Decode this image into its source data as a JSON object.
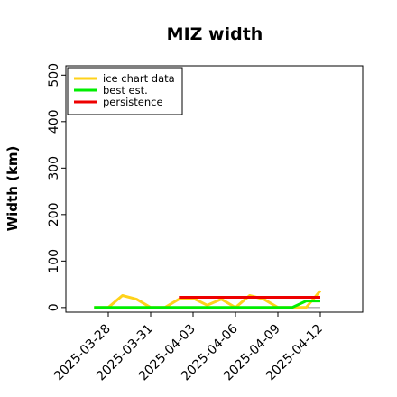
{
  "chart_data": {
    "type": "line",
    "title": "MIZ width",
    "xlabel": "",
    "ylabel": "Width (km)",
    "ylim": [
      -10,
      520
    ],
    "yticks": [
      0,
      100,
      200,
      300,
      400,
      500
    ],
    "xlim": [
      "2025-03-25",
      "2025-04-15"
    ],
    "xticks": [
      "2025-03-28",
      "2025-03-31",
      "2025-04-03",
      "2025-04-06",
      "2025-04-09",
      "2025-04-12"
    ],
    "grid": false,
    "legend_position": "top-left",
    "series": [
      {
        "name": "ice chart data",
        "color": "#ffd21a",
        "x": [
          "2025-03-27",
          "2025-03-28",
          "2025-03-29",
          "2025-03-30",
          "2025-03-31",
          "2025-04-01",
          "2025-04-02",
          "2025-04-03",
          "2025-04-04",
          "2025-04-05",
          "2025-04-06",
          "2025-04-07",
          "2025-04-08",
          "2025-04-09",
          "2025-04-10",
          "2025-04-11",
          "2025-04-12"
        ],
        "values": [
          0,
          0,
          26,
          18,
          0,
          0,
          18,
          20,
          5,
          18,
          0,
          26,
          18,
          0,
          0,
          0,
          36
        ]
      },
      {
        "name": "best est.",
        "color": "#00ee00",
        "x": [
          "2025-03-27",
          "2025-03-28",
          "2025-03-29",
          "2025-03-30",
          "2025-03-31",
          "2025-04-01",
          "2025-04-02",
          "2025-04-03",
          "2025-04-04",
          "2025-04-05",
          "2025-04-06",
          "2025-04-07",
          "2025-04-08",
          "2025-04-09",
          "2025-04-10",
          "2025-04-11",
          "2025-04-12"
        ],
        "values": [
          0,
          0,
          0,
          0,
          0,
          0,
          0,
          0,
          0,
          0,
          0,
          0,
          0,
          0,
          0,
          14,
          14
        ]
      },
      {
        "name": "persistence",
        "color": "#ee0000",
        "x": [
          "2025-04-02",
          "2025-04-12"
        ],
        "values": [
          22,
          22
        ]
      }
    ]
  }
}
